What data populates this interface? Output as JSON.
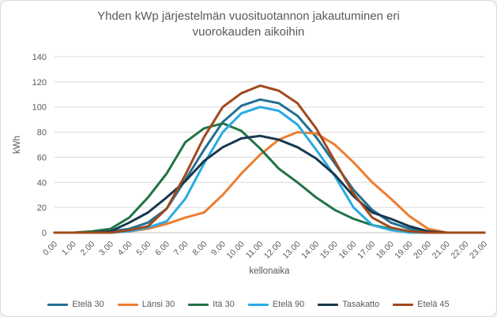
{
  "chart": {
    "title": "Yhden kWp järjestelmän vuosituotannon jakautuminen eri vuorokauden aikoihin"
  },
  "colors": {
    "text_gray": "#595959",
    "gridline": "#d9d9d9",
    "axis_line": "#bfbfbf",
    "chart_border": "#d9d9d9",
    "background": "#ffffff"
  },
  "chart_data": {
    "type": "line",
    "title": "Yhden kWp järjestelmän vuosituotannon jakautuminen eri vuorokauden aikoihin",
    "xlabel": "kellonaika",
    "ylabel": "kWh",
    "ylim": [
      0,
      140
    ],
    "ytick_step": 20,
    "grid": true,
    "legend_position": "bottom",
    "x_categories": [
      "0.00",
      "1.00",
      "2.00",
      "3.00",
      "4.00",
      "5.00",
      "6.00",
      "7.00",
      "8.00",
      "9.00",
      "10.00",
      "11.00",
      "12.00",
      "13.00",
      "14.00",
      "15.00",
      "16.00",
      "17.00",
      "18.00",
      "19.00",
      "20.00",
      "21.00",
      "22.00",
      "23.00"
    ],
    "series": [
      {
        "name": "Etelä 30",
        "color": "#256f92",
        "values": [
          0,
          0,
          0,
          1,
          3,
          8,
          19,
          42,
          66,
          88,
          101,
          106,
          103,
          93,
          76,
          55,
          34,
          18,
          8,
          3,
          1,
          0,
          0,
          0
        ]
      },
      {
        "name": "Länsi 30",
        "color": "#ed7d31",
        "values": [
          0,
          0,
          0,
          0,
          1,
          3,
          7,
          12,
          16,
          30,
          47,
          62,
          74,
          80,
          79,
          70,
          56,
          40,
          27,
          13,
          3,
          0,
          0,
          0
        ]
      },
      {
        "name": "Itä 30",
        "color": "#217346",
        "values": [
          0,
          0,
          1,
          3,
          12,
          28,
          47,
          72,
          83,
          87,
          81,
          67,
          51,
          40,
          28,
          18,
          11,
          6,
          3,
          1,
          0,
          0,
          0,
          0
        ]
      },
      {
        "name": "Etelä 90",
        "color": "#29abe2",
        "values": [
          0,
          0,
          0,
          0,
          1,
          4,
          9,
          27,
          55,
          80,
          95,
          100,
          97,
          86,
          66,
          45,
          20,
          6,
          2,
          0,
          0,
          0,
          0,
          0
        ]
      },
      {
        "name": "Tasakatto",
        "color": "#17384f",
        "values": [
          0,
          0,
          0,
          1,
          8,
          16,
          28,
          41,
          57,
          68,
          75,
          77,
          74,
          68,
          59,
          46,
          29,
          16,
          11,
          5,
          1,
          0,
          0,
          0
        ]
      },
      {
        "name": "Etelä 45",
        "color": "#a04a1c",
        "values": [
          0,
          0,
          0,
          0,
          2,
          5,
          19,
          46,
          76,
          100,
          111,
          117,
          113,
          103,
          83,
          57,
          31,
          12,
          4,
          1,
          0,
          0,
          0,
          0
        ]
      }
    ]
  }
}
